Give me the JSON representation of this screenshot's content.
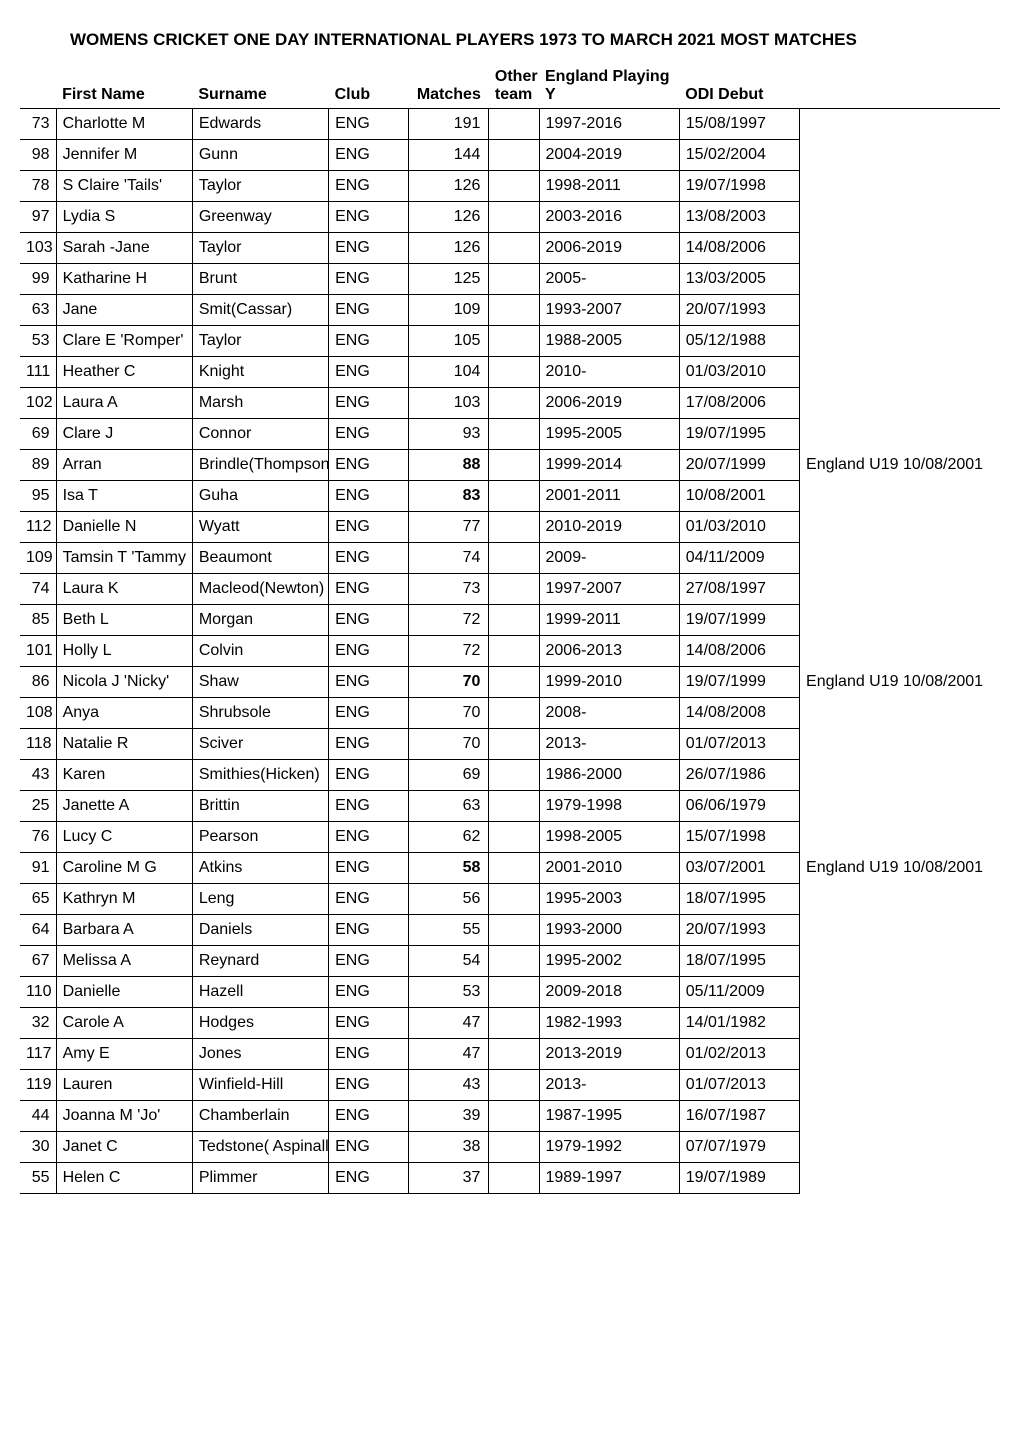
{
  "title": "WOMENS CRICKET ONE DAY INTERNATIONAL PLAYERS 1973 TO MARCH 2021 MOST MATCHES",
  "headers": {
    "num": "",
    "first_name": "First Name",
    "surname": "Surname",
    "club": "Club",
    "matches": "Matches",
    "other_team": "Other team",
    "playing": "England Playing Y",
    "odi_debut": "ODI Debut",
    "note": ""
  },
  "rows": [
    {
      "num": "73",
      "first_name": "Charlotte M",
      "surname": "Edwards",
      "club": "ENG",
      "matches": "191",
      "bold": false,
      "other": "",
      "playing": "1997-2016",
      "odi": "15/08/1997",
      "note": ""
    },
    {
      "num": "98",
      "first_name": "Jennifer M",
      "surname": "Gunn",
      "club": "ENG",
      "matches": "144",
      "bold": false,
      "other": "",
      "playing": "2004-2019",
      "odi": "15/02/2004",
      "note": ""
    },
    {
      "num": "78",
      "first_name": "S Claire 'Tails'",
      "surname": "Taylor",
      "club": "ENG",
      "matches": "126",
      "bold": false,
      "other": "",
      "playing": "1998-2011",
      "odi": "19/07/1998",
      "note": ""
    },
    {
      "num": "97",
      "first_name": "Lydia S",
      "surname": "Greenway",
      "club": "ENG",
      "matches": "126",
      "bold": false,
      "other": "",
      "playing": "2003-2016",
      "odi": "13/08/2003",
      "note": ""
    },
    {
      "num": "103",
      "first_name": "Sarah -Jane",
      "surname": "Taylor",
      "club": "ENG",
      "matches": "126",
      "bold": false,
      "other": "",
      "playing": "2006-2019",
      "odi": "14/08/2006",
      "note": ""
    },
    {
      "num": "99",
      "first_name": "Katharine H",
      "surname": "Brunt",
      "club": "ENG",
      "matches": "125",
      "bold": false,
      "other": "",
      "playing": "2005-",
      "odi": "13/03/2005",
      "note": ""
    },
    {
      "num": "63",
      "first_name": "Jane",
      "surname": "Smit(Cassar)",
      "club": "ENG",
      "matches": "109",
      "bold": false,
      "other": "",
      "playing": "1993-2007",
      "odi": "20/07/1993",
      "note": ""
    },
    {
      "num": "53",
      "first_name": "Clare E 'Romper'",
      "surname": "Taylor",
      "club": "ENG",
      "matches": "105",
      "bold": false,
      "other": "",
      "playing": "1988-2005",
      "odi": "05/12/1988",
      "note": ""
    },
    {
      "num": "111",
      "first_name": "Heather C",
      "surname": "Knight",
      "club": "ENG",
      "matches": "104",
      "bold": false,
      "other": "",
      "playing": "2010-",
      "odi": "01/03/2010",
      "note": ""
    },
    {
      "num": "102",
      "first_name": "Laura A",
      "surname": "Marsh",
      "club": "ENG",
      "matches": "103",
      "bold": false,
      "other": "",
      "playing": "2006-2019",
      "odi": "17/08/2006",
      "note": ""
    },
    {
      "num": "69",
      "first_name": "Clare J",
      "surname": "Connor",
      "club": "ENG",
      "matches": "93",
      "bold": false,
      "other": "",
      "playing": "1995-2005",
      "odi": "19/07/1995",
      "note": ""
    },
    {
      "num": "89",
      "first_name": "Arran",
      "surname": "Brindle(Thompson",
      "club": "ENG",
      "matches": "88",
      "bold": true,
      "other": "",
      "playing": "1999-2014",
      "odi": "20/07/1999",
      "note": "England U19 10/08/2001"
    },
    {
      "num": "95",
      "first_name": "Isa T",
      "surname": "Guha",
      "club": "ENG",
      "matches": "83",
      "bold": true,
      "other": "",
      "playing": "2001-2011",
      "odi": "10/08/2001",
      "note": ""
    },
    {
      "num": "112",
      "first_name": "Danielle N",
      "surname": "Wyatt",
      "club": "ENG",
      "matches": "77",
      "bold": false,
      "other": "",
      "playing": "2010-2019",
      "odi": "01/03/2010",
      "note": ""
    },
    {
      "num": "109",
      "first_name": "Tamsin T 'Tammy",
      "surname": "Beaumont",
      "club": "ENG",
      "matches": "74",
      "bold": false,
      "other": "",
      "playing": "2009-",
      "odi": "04/11/2009",
      "note": ""
    },
    {
      "num": "74",
      "first_name": "Laura K",
      "surname": "Macleod(Newton)",
      "club": "ENG",
      "matches": "73",
      "bold": false,
      "other": "",
      "playing": "1997-2007",
      "odi": "27/08/1997",
      "note": ""
    },
    {
      "num": "85",
      "first_name": "Beth L",
      "surname": "Morgan",
      "club": "ENG",
      "matches": "72",
      "bold": false,
      "other": "",
      "playing": "1999-2011",
      "odi": "19/07/1999",
      "note": ""
    },
    {
      "num": "101",
      "first_name": "Holly L",
      "surname": "Colvin",
      "club": "ENG",
      "matches": "72",
      "bold": false,
      "other": "",
      "playing": "2006-2013",
      "odi": "14/08/2006",
      "note": ""
    },
    {
      "num": "86",
      "first_name": "Nicola J 'Nicky'",
      "surname": "Shaw",
      "club": "ENG",
      "matches": "70",
      "bold": true,
      "other": "",
      "playing": "1999-2010",
      "odi": "19/07/1999",
      "note": "England U19 10/08/2001"
    },
    {
      "num": "108",
      "first_name": "Anya",
      "surname": "Shrubsole",
      "club": "ENG",
      "matches": "70",
      "bold": false,
      "other": "",
      "playing": "2008-",
      "odi": "14/08/2008",
      "note": ""
    },
    {
      "num": "118",
      "first_name": "Natalie R",
      "surname": "Sciver",
      "club": "ENG",
      "matches": "70",
      "bold": false,
      "other": "",
      "playing": "2013-",
      "odi": "01/07/2013",
      "note": ""
    },
    {
      "num": "43",
      "first_name": "Karen",
      "surname": "Smithies(Hicken)",
      "club": "ENG",
      "matches": "69",
      "bold": false,
      "other": "",
      "playing": "1986-2000",
      "odi": "26/07/1986",
      "note": ""
    },
    {
      "num": "25",
      "first_name": "Janette A",
      "surname": "Brittin",
      "club": "ENG",
      "matches": "63",
      "bold": false,
      "other": "",
      "playing": "1979-1998",
      "odi": "06/06/1979",
      "note": ""
    },
    {
      "num": "76",
      "first_name": "Lucy C",
      "surname": "Pearson",
      "club": "ENG",
      "matches": "62",
      "bold": false,
      "other": "",
      "playing": "1998-2005",
      "odi": "15/07/1998",
      "note": ""
    },
    {
      "num": "91",
      "first_name": "Caroline M G",
      "surname": "Atkins",
      "club": "ENG",
      "matches": "58",
      "bold": true,
      "other": "",
      "playing": "2001-2010",
      "odi": "03/07/2001",
      "note": "England U19 10/08/2001"
    },
    {
      "num": "65",
      "first_name": "Kathryn M",
      "surname": "Leng",
      "club": "ENG",
      "matches": "56",
      "bold": false,
      "other": "",
      "playing": "1995-2003",
      "odi": "18/07/1995",
      "note": ""
    },
    {
      "num": "64",
      "first_name": "Barbara A",
      "surname": "Daniels",
      "club": "ENG",
      "matches": "55",
      "bold": false,
      "other": "",
      "playing": "1993-2000",
      "odi": "20/07/1993",
      "note": ""
    },
    {
      "num": "67",
      "first_name": "Melissa A",
      "surname": "Reynard",
      "club": "ENG",
      "matches": "54",
      "bold": false,
      "other": "",
      "playing": "1995-2002",
      "odi": "18/07/1995",
      "note": ""
    },
    {
      "num": "110",
      "first_name": "Danielle",
      "surname": "Hazell",
      "club": "ENG",
      "matches": "53",
      "bold": false,
      "other": "",
      "playing": "2009-2018",
      "odi": "05/11/2009",
      "note": ""
    },
    {
      "num": "32",
      "first_name": "Carole A",
      "surname": "Hodges",
      "club": "ENG",
      "matches": "47",
      "bold": false,
      "other": "",
      "playing": "1982-1993",
      "odi": "14/01/1982",
      "note": ""
    },
    {
      "num": "117",
      "first_name": "Amy E",
      "surname": "Jones",
      "club": "ENG",
      "matches": "47",
      "bold": false,
      "other": "",
      "playing": "2013-2019",
      "odi": "01/02/2013",
      "note": ""
    },
    {
      "num": "119",
      "first_name": "Lauren",
      "surname": "Winfield-Hill",
      "club": "ENG",
      "matches": "43",
      "bold": false,
      "other": "",
      "playing": "2013-",
      "odi": "01/07/2013",
      "note": ""
    },
    {
      "num": "44",
      "first_name": "Joanna M 'Jo'",
      "surname": "Chamberlain",
      "club": "ENG",
      "matches": "39",
      "bold": false,
      "other": "",
      "playing": "1987-1995",
      "odi": "16/07/1987",
      "note": ""
    },
    {
      "num": "30",
      "first_name": "Janet C",
      "surname": "Tedstone( Aspinall)",
      "club": "ENG",
      "matches": "38",
      "bold": false,
      "other": "",
      "playing": "1979-1992",
      "odi": "07/07/1979",
      "note": ""
    },
    {
      "num": "55",
      "first_name": "Helen C",
      "surname": "Plimmer",
      "club": "ENG",
      "matches": "37",
      "bold": false,
      "other": "",
      "playing": "1989-1997",
      "odi": "19/07/1989",
      "note": ""
    }
  ]
}
